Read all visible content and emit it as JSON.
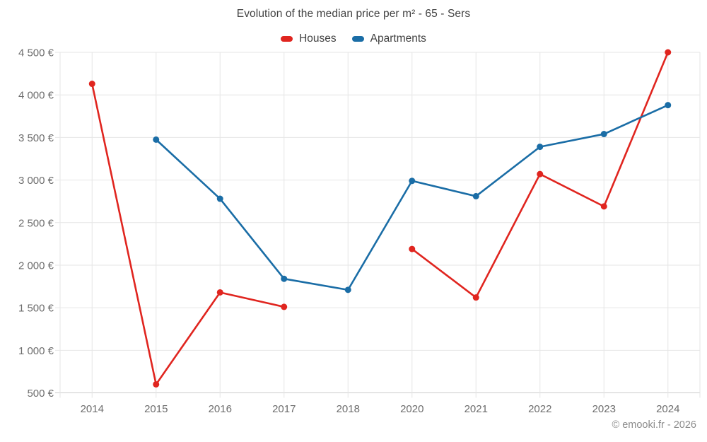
{
  "page": {
    "footer": "© emooki.fr - 2026"
  },
  "chart_data": {
    "type": "line",
    "title": "Evolution of the median price per m² - 65 - Sers",
    "categories": [
      "2014",
      "2015",
      "2016",
      "2017",
      "2018",
      "2020",
      "2021",
      "2022",
      "2023",
      "2024"
    ],
    "series": [
      {
        "name": "Houses",
        "color": "#e0251f",
        "values": [
          4130,
          600,
          1680,
          1510,
          null,
          2190,
          1620,
          3070,
          2690,
          4500
        ]
      },
      {
        "name": "Apartments",
        "color": "#1a6da6",
        "values": [
          null,
          3475,
          2780,
          1840,
          1710,
          2990,
          2810,
          3390,
          3540,
          3880
        ]
      }
    ],
    "ylabel": "",
    "xlabel": "",
    "ylim": [
      500,
      4500
    ],
    "y_tick_step": 500,
    "y_tick_labels": [
      "500 €",
      "1 000 €",
      "1 500 €",
      "2 000 €",
      "2 500 €",
      "3 000 €",
      "3 500 €",
      "4 000 €",
      "4 500 €"
    ],
    "grid": true,
    "legend_position": "top",
    "grid_color": "#e6e6e6",
    "axis_line_color": "#cbcbcb"
  }
}
